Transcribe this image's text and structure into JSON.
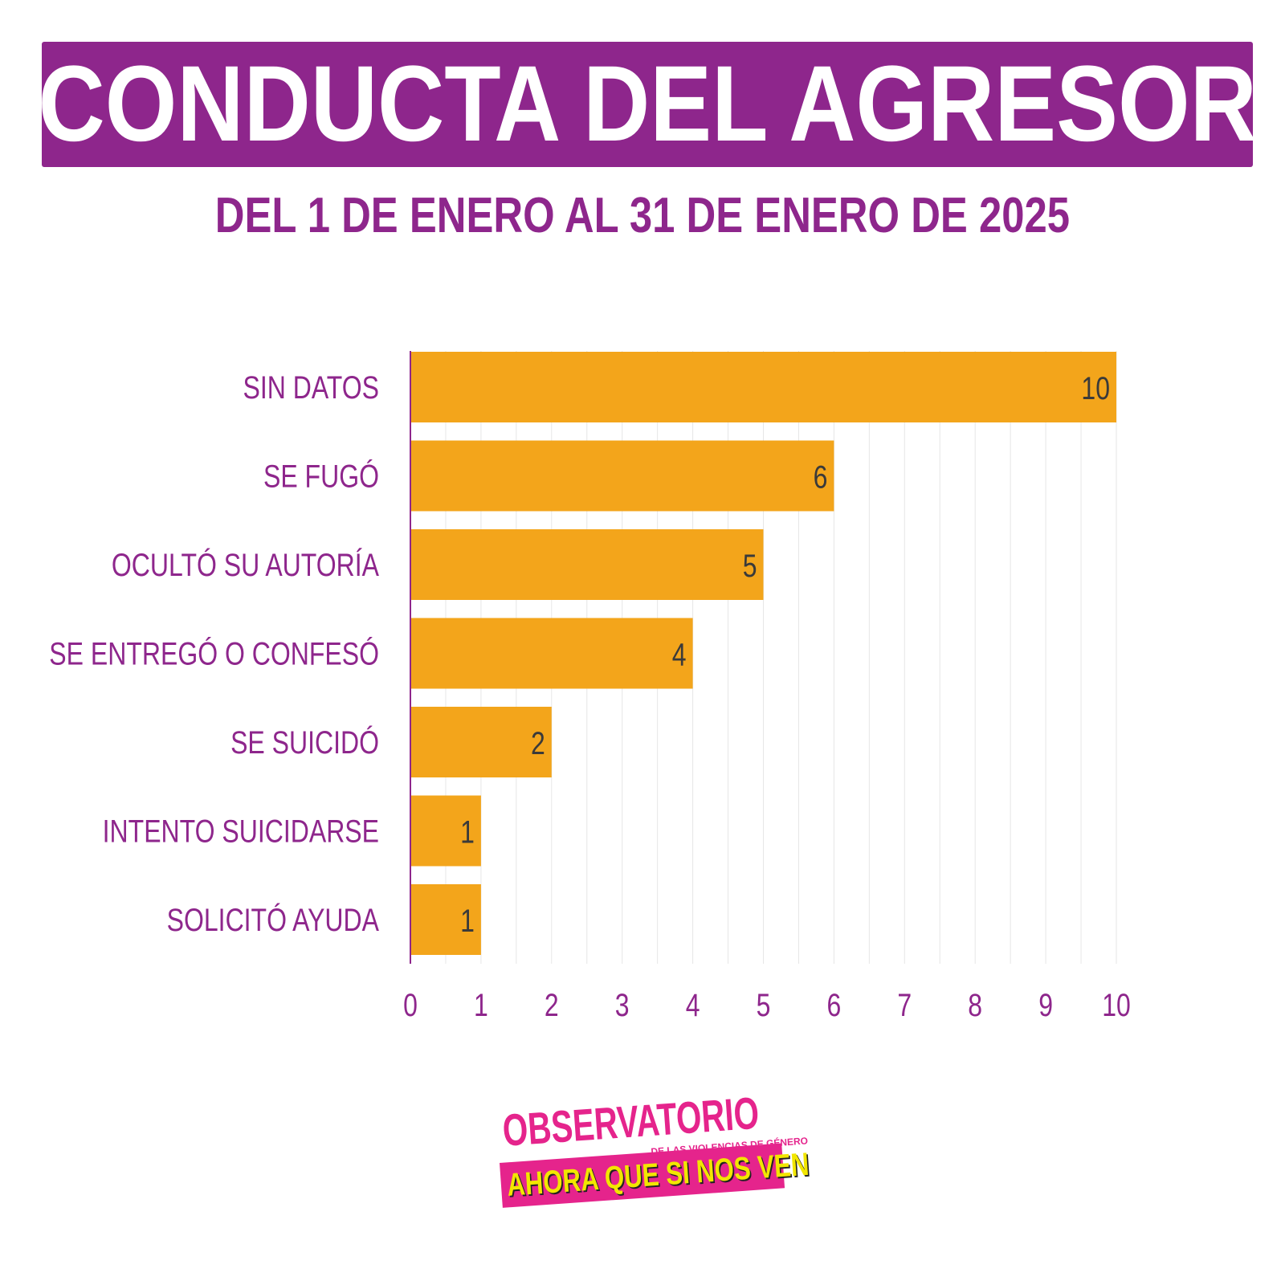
{
  "header": {
    "title": "CONDUCTA DEL AGRESOR",
    "subtitle": "DEL 1 DE ENERO AL 31 DE ENERO DE 2025"
  },
  "colors": {
    "primary_purple": "#8e268c",
    "bar_orange": "#f3a51b",
    "logo_pink": "#e5248c",
    "logo_yellow": "#f2e600"
  },
  "chart_data": {
    "type": "bar",
    "orientation": "horizontal",
    "categories": [
      "SIN DATOS",
      "SE FUGÓ",
      "OCULTÓ SU AUTORÍA",
      "SE ENTREGÓ O CONFESÓ",
      "SE SUICIDÓ",
      "INTENTO SUICIDARSE",
      "SOLICITÓ AYUDA"
    ],
    "values": [
      10,
      6,
      5,
      4,
      2,
      1,
      1
    ],
    "xlim": [
      0,
      10
    ],
    "x_ticks": [
      0,
      1,
      2,
      3,
      4,
      5,
      6,
      7,
      8,
      9,
      10
    ],
    "grid": true,
    "data_labels": true
  },
  "logo": {
    "line1": "OBSERVATORIO",
    "line2": "DE LAS VIOLENCIAS DE GÉNERO",
    "line3": "AHORA QUE SI NOS VEN"
  }
}
